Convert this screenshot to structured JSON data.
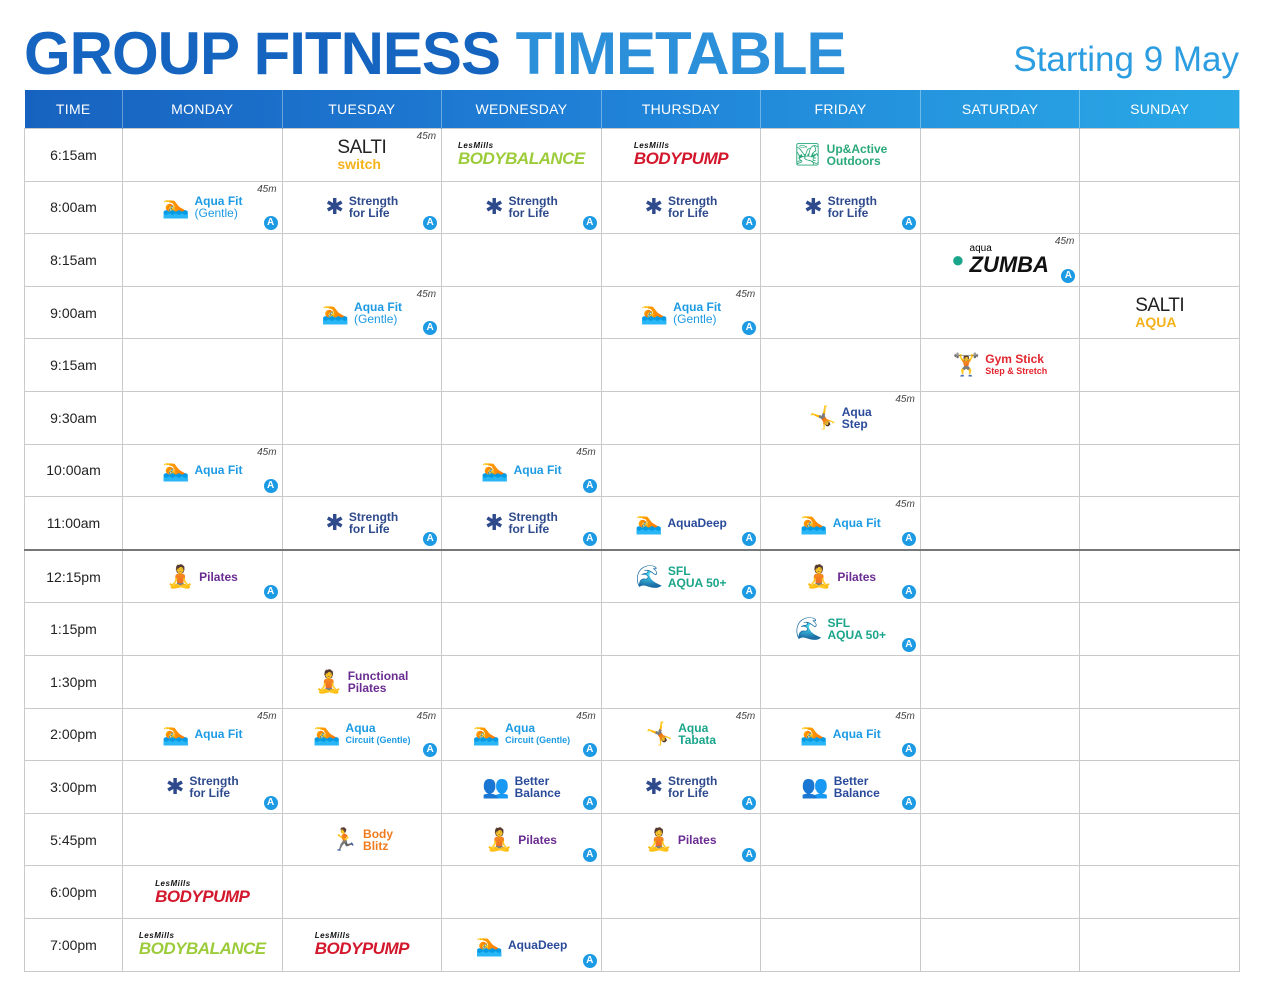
{
  "header": {
    "title_part1": "GROUP FITNESS",
    "title_part2": "TIMETABLE",
    "subtitle": "Starting 9 May"
  },
  "columns": [
    "TIME",
    "MONDAY",
    "TUESDAY",
    "WEDNESDAY",
    "THURSDAY",
    "FRIDAY",
    "SATURDAY",
    "SUNDAY"
  ],
  "colors": {
    "header_dark": "#1762bf",
    "header_light": "#2aa9e6",
    "aqua": "#1c9ae3",
    "strength": "#2e4a8c",
    "bodypump": "#d3172c",
    "bodybalance": "#9ccc3a",
    "pilates": "#6a2c91",
    "body_blitz": "#f07c1e",
    "gym_stick": "#e3262f",
    "sfl": "#1aa58a",
    "up_active": "#2aa87a",
    "better_balance": "#2a4a9a"
  },
  "rows": [
    {
      "time": "6:15am",
      "cells": [
        null,
        {
          "kind": "salti",
          "line1": "SALTI",
          "line2": "switch",
          "duration": "45m"
        },
        {
          "kind": "lesmills",
          "top": "LesMills",
          "name": "BODYBALANCE",
          "color": "#9ccc3a"
        },
        {
          "kind": "lesmills",
          "top": "LesMills",
          "name": "BODYPUMP",
          "color": "#d3172c"
        },
        {
          "kind": "class",
          "icon": "🏞",
          "icon_name": "outdoors-icon",
          "name": "Up&Active",
          "sub": "Outdoors",
          "color": "#2aa87a"
        },
        null,
        null
      ]
    },
    {
      "time": "8:00am",
      "cells": [
        {
          "kind": "class",
          "icon": "🏊",
          "icon_name": "aqua-fit-icon",
          "name": "Aqua Fit",
          "sub": "(Gentle)",
          "color": "#1c9ae3",
          "duration": "45m",
          "accessible": "A"
        },
        {
          "kind": "class",
          "icon": "✱",
          "icon_name": "strength-for-life-icon",
          "name": "Strength",
          "sub": "for Life",
          "color": "#2e4a8c",
          "accessible": "A"
        },
        {
          "kind": "class",
          "icon": "✱",
          "icon_name": "strength-for-life-icon",
          "name": "Strength",
          "sub": "for Life",
          "color": "#2e4a8c",
          "accessible": "A"
        },
        {
          "kind": "class",
          "icon": "✱",
          "icon_name": "strength-for-life-icon",
          "name": "Strength",
          "sub": "for Life",
          "color": "#2e4a8c",
          "accessible": "A"
        },
        {
          "kind": "class",
          "icon": "✱",
          "icon_name": "strength-for-life-icon",
          "name": "Strength",
          "sub": "for Life",
          "color": "#2e4a8c",
          "accessible": "A"
        },
        null,
        null
      ]
    },
    {
      "time": "8:15am",
      "cells": [
        null,
        null,
        null,
        null,
        null,
        {
          "kind": "zumba",
          "line1": "aqua",
          "name": "ZUMBA",
          "duration": "45m",
          "accessible": "A"
        },
        null
      ]
    },
    {
      "time": "9:00am",
      "cells": [
        null,
        {
          "kind": "class",
          "icon": "🏊",
          "icon_name": "aqua-fit-icon",
          "name": "Aqua Fit",
          "sub": "(Gentle)",
          "color": "#1c9ae3",
          "duration": "45m",
          "accessible": "A"
        },
        null,
        {
          "kind": "class",
          "icon": "🏊",
          "icon_name": "aqua-fit-icon",
          "name": "Aqua Fit",
          "sub": "(Gentle)",
          "color": "#1c9ae3",
          "duration": "45m",
          "accessible": "A"
        },
        null,
        null,
        {
          "kind": "salti",
          "line1": "SALTI",
          "line2": "AQUA"
        }
      ]
    },
    {
      "time": "9:15am",
      "cells": [
        null,
        null,
        null,
        null,
        null,
        {
          "kind": "class",
          "icon": "🏋",
          "icon_name": "gym-stick-icon",
          "name": "Gym Stick",
          "sub": "Step & Stretch",
          "color": "#e3262f"
        },
        null
      ]
    },
    {
      "time": "9:30am",
      "cells": [
        null,
        null,
        null,
        null,
        {
          "kind": "class",
          "icon": "🤸",
          "icon_name": "aqua-step-icon",
          "name": "Aqua",
          "sub": "Step",
          "color": "#2a4a9a",
          "duration": "45m"
        },
        null,
        null
      ]
    },
    {
      "time": "10:00am",
      "cells": [
        {
          "kind": "class",
          "icon": "🏊",
          "icon_name": "aqua-fit-icon",
          "name": "Aqua Fit",
          "sub": "",
          "color": "#1c9ae3",
          "duration": "45m",
          "accessible": "A"
        },
        null,
        {
          "kind": "class",
          "icon": "🏊",
          "icon_name": "aqua-fit-icon",
          "name": "Aqua Fit",
          "sub": "",
          "color": "#1c9ae3",
          "duration": "45m",
          "accessible": "A"
        },
        null,
        null,
        null,
        null
      ]
    },
    {
      "time": "11:00am",
      "cells": [
        null,
        {
          "kind": "class",
          "icon": "✱",
          "icon_name": "strength-for-life-icon",
          "name": "Strength",
          "sub": "for Life",
          "color": "#2e4a8c",
          "accessible": "A"
        },
        {
          "kind": "class",
          "icon": "✱",
          "icon_name": "strength-for-life-icon",
          "name": "Strength",
          "sub": "for Life",
          "color": "#2e4a8c",
          "accessible": "A"
        },
        {
          "kind": "class",
          "icon": "🏊",
          "icon_name": "aqua-deep-icon",
          "name": "AquaDeep",
          "sub": "",
          "color": "#2a4a9a",
          "accessible": "A"
        },
        {
          "kind": "class",
          "icon": "🏊",
          "icon_name": "aqua-fit-icon",
          "name": "Aqua Fit",
          "sub": "",
          "color": "#1c9ae3",
          "duration": "45m",
          "accessible": "A"
        },
        null,
        null
      ]
    },
    {
      "time": "12:15pm",
      "divider": true,
      "cells": [
        {
          "kind": "class",
          "icon": "🧘",
          "icon_name": "pilates-icon",
          "name": "Pilates",
          "sub": "",
          "color": "#6a2c91",
          "accessible": "A"
        },
        null,
        null,
        {
          "kind": "class",
          "icon": "🌊",
          "icon_name": "sfl-aqua-icon",
          "name": "SFL",
          "sub": "AQUA 50+",
          "color": "#1aa58a",
          "accessible": "A"
        },
        {
          "kind": "class",
          "icon": "🧘",
          "icon_name": "pilates-icon",
          "name": "Pilates",
          "sub": "",
          "color": "#6a2c91",
          "accessible": "A"
        },
        null,
        null
      ]
    },
    {
      "time": "1:15pm",
      "cells": [
        null,
        null,
        null,
        null,
        {
          "kind": "class",
          "icon": "🌊",
          "icon_name": "sfl-aqua-icon",
          "name": "SFL",
          "sub": "AQUA 50+",
          "color": "#1aa58a",
          "accessible": "A"
        },
        null,
        null
      ]
    },
    {
      "time": "1:30pm",
      "cells": [
        null,
        {
          "kind": "class",
          "icon": "🧘",
          "icon_name": "functional-pilates-icon",
          "name": "Functional",
          "sub": "Pilates",
          "color": "#6a2c91"
        },
        null,
        null,
        null,
        null,
        null
      ]
    },
    {
      "time": "2:00pm",
      "cells": [
        {
          "kind": "class",
          "icon": "🏊",
          "icon_name": "aqua-fit-icon",
          "name": "Aqua Fit",
          "sub": "",
          "color": "#1c9ae3",
          "duration": "45m"
        },
        {
          "kind": "class",
          "icon": "🏊",
          "icon_name": "aqua-circuit-icon",
          "name": "Aqua",
          "sub": "Circuit (Gentle)",
          "color": "#1c9ae3",
          "duration": "45m",
          "accessible": "A"
        },
        {
          "kind": "class",
          "icon": "🏊",
          "icon_name": "aqua-circuit-icon",
          "name": "Aqua",
          "sub": "Circuit (Gentle)",
          "color": "#1c9ae3",
          "duration": "45m",
          "accessible": "A"
        },
        {
          "kind": "class",
          "icon": "🤸",
          "icon_name": "aqua-tabata-icon",
          "name": "Aqua",
          "sub": "Tabata",
          "color": "#1aa58a",
          "duration": "45m"
        },
        {
          "kind": "class",
          "icon": "🏊",
          "icon_name": "aqua-fit-icon",
          "name": "Aqua Fit",
          "sub": "",
          "color": "#1c9ae3",
          "duration": "45m",
          "accessible": "A"
        },
        null,
        null
      ]
    },
    {
      "time": "3:00pm",
      "cells": [
        {
          "kind": "class",
          "icon": "✱",
          "icon_name": "strength-for-life-icon",
          "name": "Strength",
          "sub": "for Life",
          "color": "#2e4a8c",
          "accessible": "A"
        },
        null,
        {
          "kind": "class",
          "icon": "👥",
          "icon_name": "better-balance-icon",
          "name": "Better",
          "sub": "Balance",
          "color": "#2a4a9a",
          "accessible": "A"
        },
        {
          "kind": "class",
          "icon": "✱",
          "icon_name": "strength-for-life-icon",
          "name": "Strength",
          "sub": "for Life",
          "color": "#2e4a8c",
          "accessible": "A"
        },
        {
          "kind": "class",
          "icon": "👥",
          "icon_name": "better-balance-icon",
          "name": "Better",
          "sub": "Balance",
          "color": "#2a4a9a",
          "accessible": "A"
        },
        null,
        null
      ]
    },
    {
      "time": "5:45pm",
      "cells": [
        null,
        {
          "kind": "class",
          "icon": "🏃",
          "icon_name": "body-blitz-icon",
          "name": "Body",
          "sub": "Blitz",
          "color": "#f07c1e"
        },
        {
          "kind": "class",
          "icon": "🧘",
          "icon_name": "pilates-icon",
          "name": "Pilates",
          "sub": "",
          "color": "#6a2c91",
          "accessible": "A"
        },
        {
          "kind": "class",
          "icon": "🧘",
          "icon_name": "pilates-icon",
          "name": "Pilates",
          "sub": "",
          "color": "#6a2c91",
          "accessible": "A"
        },
        null,
        null,
        null
      ]
    },
    {
      "time": "6:00pm",
      "cells": [
        {
          "kind": "lesmills",
          "top": "LesMills",
          "name": "BODYPUMP",
          "color": "#d3172c"
        },
        null,
        null,
        null,
        null,
        null,
        null
      ]
    },
    {
      "time": "7:00pm",
      "cells": [
        {
          "kind": "lesmills",
          "top": "LesMills",
          "name": "BODYBALANCE",
          "color": "#9ccc3a"
        },
        {
          "kind": "lesmills",
          "top": "LesMills",
          "name": "BODYPUMP",
          "color": "#d3172c"
        },
        {
          "kind": "class",
          "icon": "🏊",
          "icon_name": "aqua-deep-icon",
          "name": "AquaDeep",
          "sub": "",
          "color": "#2a4a9a",
          "accessible": "A"
        },
        null,
        null,
        null,
        null
      ]
    }
  ]
}
